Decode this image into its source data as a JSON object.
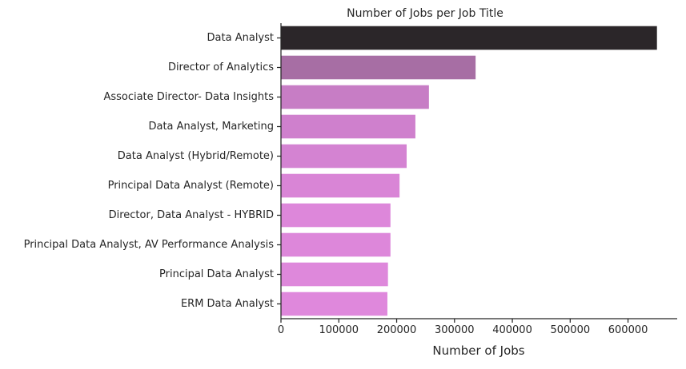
{
  "chart_data": {
    "type": "bar",
    "orientation": "horizontal",
    "title": "Number of Jobs per Job Title",
    "xlabel": "Number of Jobs",
    "ylabel": "",
    "categories": [
      "Data Analyst",
      "Director of Analytics",
      "Associate Director- Data Insights",
      "Data Analyst, Marketing",
      "Data Analyst (Hybrid/Remote)",
      "Principal Data Analyst (Remote)",
      "Director, Data Analyst - HYBRID",
      "Principal Data Analyst, AV Performance Analysis",
      "Principal Data Analyst",
      "ERM Data Analyst"
    ],
    "values": [
      650000,
      336500,
      255800,
      232400,
      217300,
      205000,
      189300,
      189300,
      185000,
      184000
    ],
    "bar_colors": [
      "#2b2629",
      "#a76ea4",
      "#c77dc5",
      "#cf80cd",
      "#d483d2",
      "#d985d6",
      "#dd87da",
      "#dd87da",
      "#de88db",
      "#df88dc"
    ],
    "xlim": [
      0,
      685000
    ],
    "xticks": [
      0,
      100000,
      200000,
      300000,
      400000,
      500000,
      600000
    ],
    "xtick_labels": [
      "0",
      "100000",
      "200000",
      "300000",
      "400000",
      "500000",
      "600000"
    ],
    "grid": false,
    "legend": "none"
  }
}
